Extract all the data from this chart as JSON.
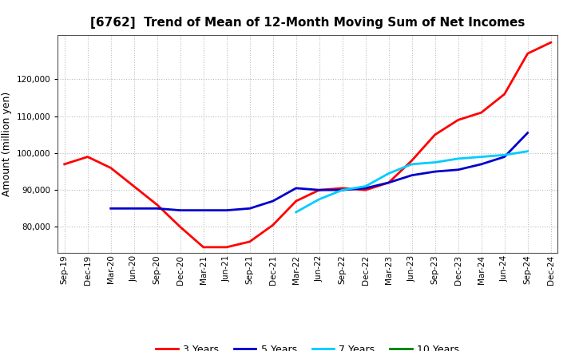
{
  "title": "[6762]  Trend of Mean of 12-Month Moving Sum of Net Incomes",
  "ylabel": "Amount (million yen)",
  "background_color": "#ffffff",
  "grid_color": "#bbbbbb",
  "ylim": [
    73000,
    132000
  ],
  "yticks": [
    80000,
    90000,
    100000,
    110000,
    120000
  ],
  "x_labels": [
    "Sep-19",
    "Dec-19",
    "Mar-20",
    "Jun-20",
    "Sep-20",
    "Dec-20",
    "Mar-21",
    "Jun-21",
    "Sep-21",
    "Dec-21",
    "Mar-22",
    "Jun-22",
    "Sep-22",
    "Dec-22",
    "Mar-23",
    "Jun-23",
    "Sep-23",
    "Dec-23",
    "Mar-24",
    "Jun-24",
    "Sep-24",
    "Dec-24"
  ],
  "series": {
    "3yr": {
      "color": "#ff0000",
      "label": "3 Years",
      "values": [
        97000,
        99000,
        96000,
        91000,
        86000,
        80000,
        74500,
        74500,
        76000,
        80500,
        87000,
        90000,
        90500,
        90000,
        92000,
        98000,
        105000,
        109000,
        111000,
        116000,
        127000,
        130000
      ]
    },
    "5yr": {
      "color": "#0000cc",
      "label": "5 Years",
      "values": [
        null,
        null,
        85000,
        85000,
        85000,
        84500,
        84500,
        84500,
        85000,
        87000,
        90500,
        90000,
        90000,
        90500,
        92000,
        94000,
        95000,
        95500,
        97000,
        99000,
        105500,
        null
      ]
    },
    "7yr": {
      "color": "#00ccff",
      "label": "7 Years",
      "values": [
        null,
        null,
        null,
        null,
        null,
        null,
        null,
        null,
        null,
        null,
        84000,
        87500,
        90000,
        91000,
        94500,
        97000,
        97500,
        98500,
        99000,
        99500,
        100500,
        null
      ]
    },
    "10yr": {
      "color": "#008000",
      "label": "10 Years",
      "values": [
        null,
        null,
        null,
        null,
        null,
        null,
        null,
        null,
        null,
        null,
        null,
        null,
        null,
        null,
        null,
        null,
        null,
        null,
        null,
        null,
        null,
        null
      ]
    }
  },
  "title_fontsize": 11,
  "legend_fontsize": 9,
  "tick_fontsize": 7.5,
  "ylabel_fontsize": 9,
  "linewidth": 2.0
}
